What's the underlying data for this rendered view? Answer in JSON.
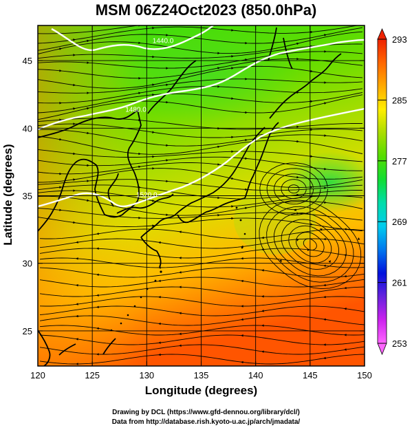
{
  "title": "MSM 06Z24Oct2023 (850.0hPa)",
  "axes": {
    "xlabel": "Longitude (degrees)",
    "ylabel": "Latitude  (degrees)",
    "x_ticks": [
      "120",
      "125",
      "130",
      "135",
      "140",
      "145",
      "150"
    ],
    "y_ticks": [
      "25",
      "30",
      "35",
      "40",
      "45"
    ]
  },
  "map": {
    "lon_range": [
      120,
      150
    ],
    "lat_range": [
      22.4,
      47.6
    ],
    "grid_lon": [
      125,
      130,
      135,
      140,
      145
    ],
    "grid_lat": [
      25,
      30,
      35,
      40,
      45
    ],
    "contour_labels": [
      {
        "text": "1440.0",
        "lon": 131.5,
        "lat": 46.3
      },
      {
        "text": "1480.0",
        "lon": 129.0,
        "lat": 41.2
      },
      {
        "text": "1520.0",
        "lon": 130.0,
        "lat": 34.9
      }
    ]
  },
  "colorbar": {
    "ticks": [
      "293",
      "285",
      "277",
      "269",
      "261",
      "253"
    ],
    "min": 253,
    "max": 293,
    "colors": [
      "#ff66ff",
      "#cc22ee",
      "#6622dd",
      "#0011dd",
      "#0077ee",
      "#00ccee",
      "#00ddaa",
      "#11dd33",
      "#55dd00",
      "#aadd00",
      "#ffee00",
      "#ffaa00",
      "#ff6600",
      "#ee2200"
    ]
  },
  "credits": {
    "line1": "Drawing by DCL (https://www.gfd-dennou.org/library/dcl/)",
    "line2": "Data from http://database.rish.kyoto-u.ac.jp/arch/jmadata/"
  }
}
